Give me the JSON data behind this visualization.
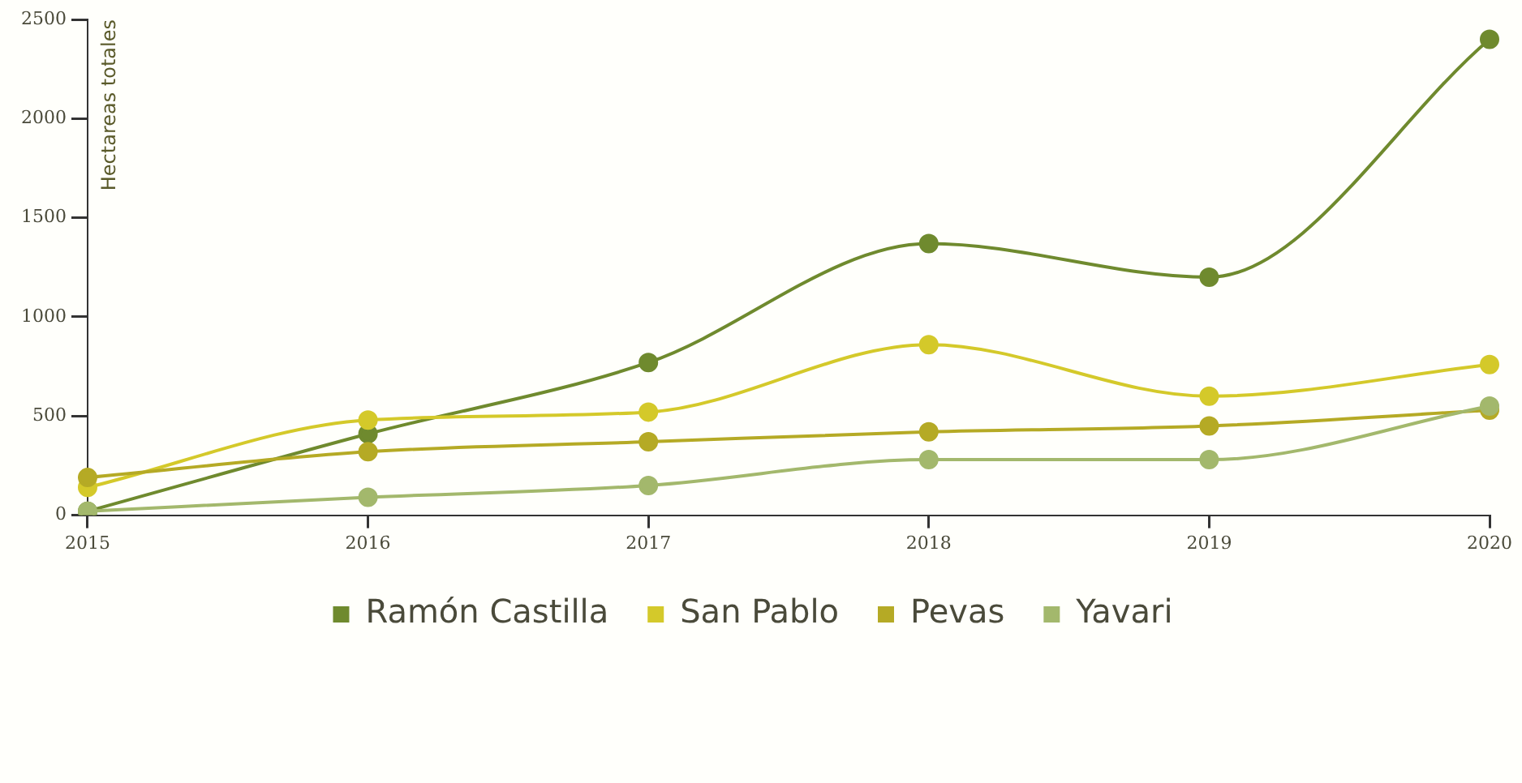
{
  "chart_data": {
    "type": "line",
    "ylabel": "Hectareas totales",
    "categories": [
      "2015",
      "2016",
      "2017",
      "2018",
      "2019",
      "2020"
    ],
    "series": [
      {
        "name": "Ramón Castilla",
        "color": "#6f8a2e",
        "values": [
          20,
          410,
          770,
          1370,
          1200,
          2400
        ]
      },
      {
        "name": "San Pablo",
        "color": "#d4c92a",
        "values": [
          140,
          480,
          520,
          860,
          600,
          760
        ]
      },
      {
        "name": "Pevas",
        "color": "#b5aa25",
        "values": [
          190,
          320,
          370,
          420,
          450,
          530
        ]
      },
      {
        "name": "Yavari",
        "color": "#a3b86c",
        "values": [
          20,
          90,
          150,
          280,
          280,
          550
        ]
      }
    ],
    "ylim": [
      0,
      2500
    ],
    "yticks": [
      0,
      500,
      1000,
      1500,
      2000,
      2500
    ],
    "grid": false,
    "legend": "bottom",
    "marker": "circle",
    "line_style": "solid"
  }
}
